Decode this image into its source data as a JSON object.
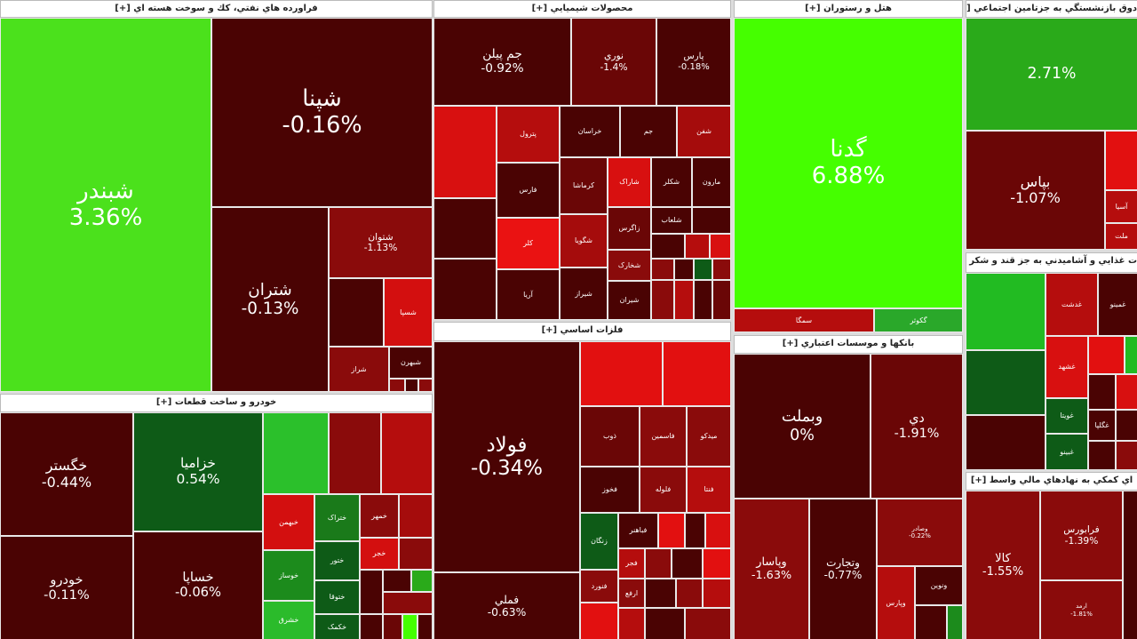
{
  "sectors": [
    {
      "title": "فراورده هاي نفتي، كك و سوخت هسته اي [+]",
      "tiles": [
        {
          "symbol": "شبندر",
          "change": "3.36%",
          "color": "#4be11c"
        },
        {
          "symbol": "شپنا",
          "change": "-0.16%",
          "color": "#4a0303"
        },
        {
          "symbol": "شتران",
          "change": "-0.13%",
          "color": "#4a0303"
        },
        {
          "symbol": "شتوان",
          "change": "-1.13%",
          "color": "#8a0b0b"
        },
        {
          "symbol": "شسپا",
          "color": "#d30f0f"
        },
        {
          "symbol": "شراز",
          "color": "#8a0b0b"
        },
        {
          "symbol": "شبهرن",
          "color": "#4a0303"
        }
      ]
    },
    {
      "title": "خودرو و ساخت قطعات [+]",
      "tiles": [
        {
          "symbol": "خگستر",
          "change": "-0.44%",
          "color": "#4a0303"
        },
        {
          "symbol": "خودرو",
          "change": "-0.11%",
          "color": "#4a0303"
        },
        {
          "symbol": "خزاميا",
          "change": "0.54%",
          "color": "#0e5b17"
        },
        {
          "symbol": "خساپا",
          "change": "-0.06%",
          "color": "#4a0303"
        },
        {
          "symbol": "خبهمن",
          "color": "#d30f0f"
        },
        {
          "symbol": "خوساز",
          "color": "#1c8b1c"
        },
        {
          "symbol": "خشرق",
          "color": "#2bbb2b"
        },
        {
          "symbol": "ختراک",
          "color": "#1a7a1a"
        },
        {
          "symbol": "ختور",
          "color": "#0e5b17"
        },
        {
          "symbol": "ختوقا",
          "color": "#0e5b17"
        },
        {
          "symbol": "خكمک",
          "color": "#0e5b17"
        },
        {
          "symbol": "خمهر",
          "color": "#8a0b0b"
        },
        {
          "symbol": "خجر",
          "color": "#d30f0f"
        }
      ]
    },
    {
      "title": "محصولات شيميايي [+]",
      "tiles": [
        {
          "symbol": "جم پيلن",
          "change": "-0.92%",
          "color": "#4a0303"
        },
        {
          "symbol": "نوري",
          "change": "-1.4%",
          "color": "#6a0606"
        },
        {
          "symbol": "پارس",
          "change": "-0.18%",
          "color": "#4a0303"
        },
        {
          "symbol": "پترول",
          "color": "#b50d0d"
        },
        {
          "symbol": "خراسان",
          "color": "#4a0303"
        },
        {
          "symbol": "جم",
          "color": "#4a0303"
        },
        {
          "symbol": "شفن",
          "color": "#a50c0c"
        },
        {
          "symbol": "فارس",
          "color": "#4a0303"
        },
        {
          "symbol": "كرماشا",
          "color": "#6a0606"
        },
        {
          "symbol": "شاراک",
          "color": "#d81010"
        },
        {
          "symbol": "شكلر",
          "color": "#4a0303"
        },
        {
          "symbol": "مارون",
          "color": "#4a0303"
        },
        {
          "symbol": "كلر",
          "color": "#ea1212"
        },
        {
          "symbol": "شگويا",
          "color": "#a50c0c"
        },
        {
          "symbol": "زاگرس",
          "color": "#6a0606"
        },
        {
          "symbol": "شلعاب",
          "color": "#4a0303"
        },
        {
          "symbol": "شخارک",
          "color": "#8a0b0b"
        },
        {
          "symbol": "آريا",
          "color": "#4a0303"
        },
        {
          "symbol": "شيراز",
          "color": "#4a0303"
        },
        {
          "symbol": "شيران",
          "color": "#4a0303"
        }
      ]
    },
    {
      "title": "فلزات اساسي [+]",
      "tiles": [
        {
          "symbol": "فولاد",
          "change": "-0.34%",
          "color": "#4a0303"
        },
        {
          "symbol": "فملي",
          "change": "-0.63%",
          "color": "#4a0303"
        },
        {
          "symbol": "ذوب",
          "color": "#6a0606"
        },
        {
          "symbol": "فاسمين",
          "color": "#8a0b0b"
        },
        {
          "symbol": "ميدكو",
          "color": "#8a0b0b"
        },
        {
          "symbol": "فخوز",
          "color": "#4a0303"
        },
        {
          "symbol": "فلوله",
          "color": "#8a0b0b"
        },
        {
          "symbol": "فنتا",
          "color": "#b50d0d"
        },
        {
          "symbol": "زنگان",
          "color": "#0e5b17"
        },
        {
          "symbol": "فباهنر",
          "color": "#4a0303"
        },
        {
          "symbol": "فنورد",
          "color": "#8a0b0b"
        },
        {
          "symbol": "فجر",
          "color": "#b50d0d"
        },
        {
          "symbol": "ارفع",
          "color": "#8a0b0b"
        }
      ]
    },
    {
      "title": "هتل و رستوران [+]",
      "tiles": [
        {
          "symbol": "گدنا",
          "change": "6.88%",
          "color": "#45ff00"
        },
        {
          "symbol": "سمگا",
          "color": "#b50d0d"
        },
        {
          "symbol": "گكوثر",
          "color": "#2aa82a"
        }
      ]
    },
    {
      "title": "بانكها و موسسات اعتباري [+]",
      "tiles": [
        {
          "symbol": "وبملت",
          "change": "0%",
          "color": "#4a0303"
        },
        {
          "symbol": "دي",
          "change": "-1.91%",
          "color": "#6a0606"
        },
        {
          "symbol": "وپاسار",
          "change": "-1.63%",
          "color": "#8a0b0b"
        },
        {
          "symbol": "وتجارت",
          "change": "-0.77%",
          "color": "#4a0303"
        },
        {
          "symbol": "وصادر",
          "change": "-0.22%",
          "color": "#8a0b0b"
        },
        {
          "symbol": "ونوين",
          "color": "#4a0303"
        },
        {
          "symbol": "وپارس",
          "color": "#b50d0d"
        }
      ]
    },
    {
      "title": "دوق بازنشستگي به جزتامين اجتماعي [+]",
      "tiles": [
        {
          "change": "2.71%",
          "color": "#2aaa1a"
        },
        {
          "symbol": "بپاس",
          "change": "-1.07%",
          "color": "#6a0606"
        },
        {
          "symbol": "آسيا",
          "color": "#b50d0d"
        },
        {
          "symbol": "ملت",
          "color": "#b50d0d"
        }
      ]
    },
    {
      "title": "ت غذايي و آشاميدني به جز قند و شكر [+]",
      "tiles": [
        {
          "symbol": "غدشت",
          "color": "#b50d0d"
        },
        {
          "symbol": "غمينو",
          "color": "#4a0303"
        },
        {
          "symbol": "غشهد",
          "color": "#d81010"
        },
        {
          "symbol": "غويتا",
          "color": "#0e5b17"
        },
        {
          "symbol": "غگلپا",
          "color": "#4a0303"
        },
        {
          "symbol": "غبينو",
          "color": "#0e5b17"
        }
      ]
    },
    {
      "title": "اي كمكي به نهادهاي مالي واسط [+]",
      "tiles": [
        {
          "symbol": "كالا",
          "change": "-1.55%",
          "color": "#8a0b0b"
        },
        {
          "symbol": "فرابورس",
          "change": "-1.39%",
          "color": "#8a0b0b"
        },
        {
          "symbol": "ارمد",
          "change": "-1.81%",
          "color": "#8a0b0b"
        }
      ]
    }
  ]
}
